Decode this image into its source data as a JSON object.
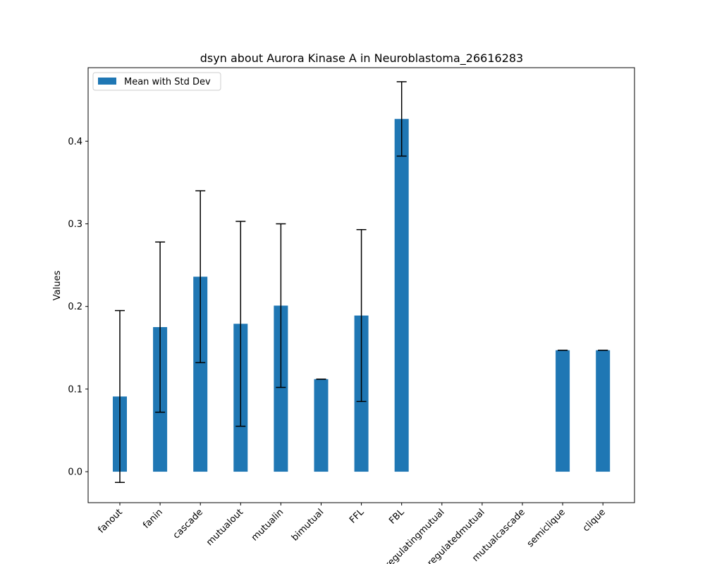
{
  "chart_data": {
    "type": "bar",
    "title": "dsyn about Aurora Kinase A in Neuroblastoma_26616283",
    "xlabel": "",
    "ylabel": "Values",
    "ylim": [
      -0.0375,
      0.489
    ],
    "yticks": [
      0.0,
      0.1,
      0.2,
      0.3,
      0.4
    ],
    "ytick_labels": [
      "0.0",
      "0.1",
      "0.2",
      "0.3",
      "0.4"
    ],
    "categories": [
      "fanout",
      "fanin",
      "cascade",
      "mutualout",
      "mutualin",
      "bimutual",
      "FFL",
      "FBL",
      "regulatingmutual",
      "regulatedmutual",
      "mutualcascade",
      "semiclique",
      "clique"
    ],
    "series": [
      {
        "name": "Mean with Std Dev",
        "color": "#1f77b4",
        "values": [
          0.091,
          0.175,
          0.236,
          0.179,
          0.201,
          0.112,
          0.189,
          0.427,
          null,
          null,
          null,
          0.147,
          0.147
        ],
        "errors": [
          0.104,
          0.103,
          0.104,
          0.124,
          0.099,
          0.0,
          0.104,
          0.045,
          null,
          null,
          null,
          0.0,
          0.0
        ]
      }
    ],
    "legend": {
      "position": "top-left",
      "label": "Mean with Std Dev"
    },
    "grid": false
  }
}
